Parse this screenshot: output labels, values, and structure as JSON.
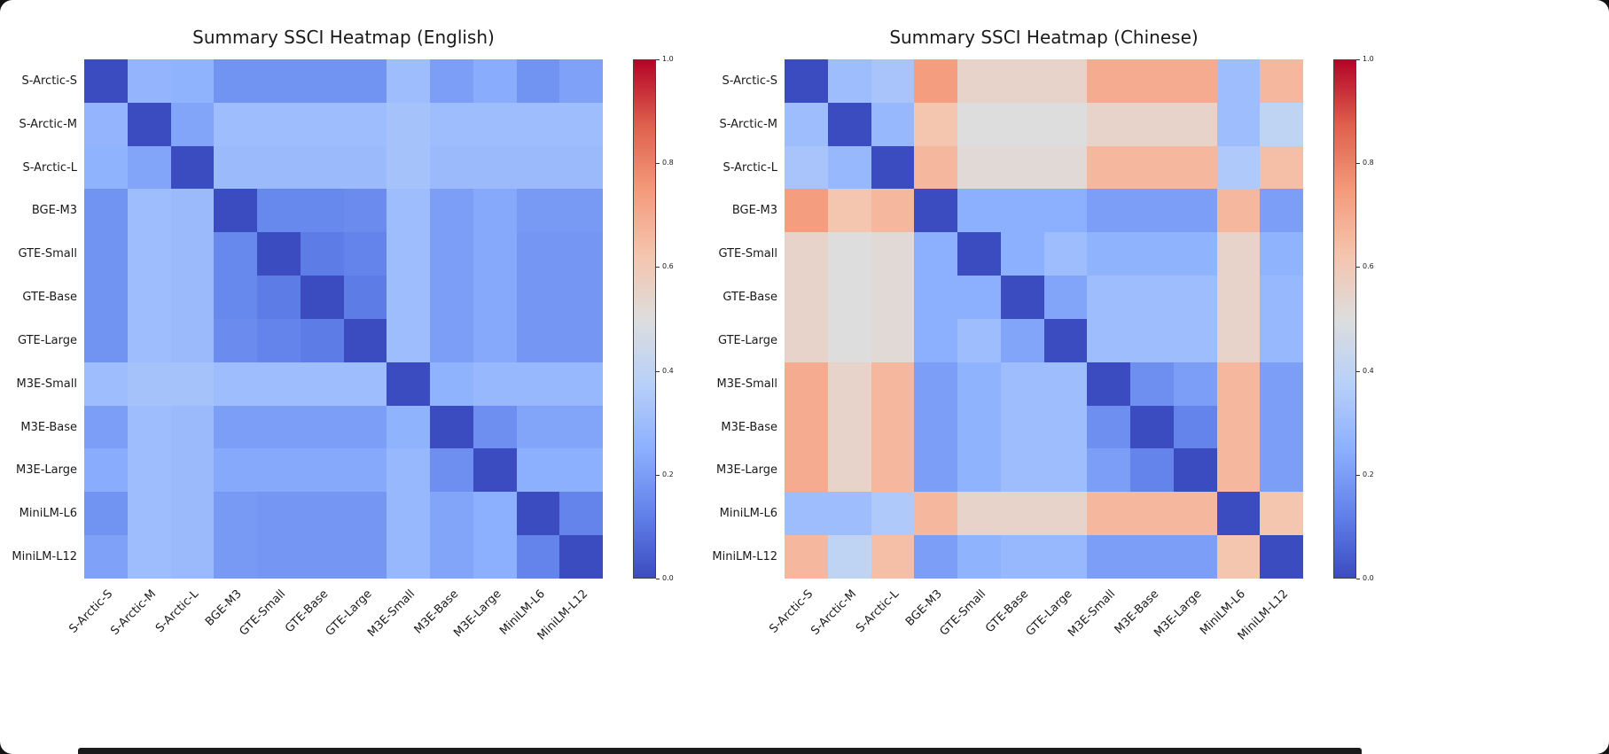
{
  "figure": {
    "background": "#ffffff",
    "page_background": "#141414"
  },
  "chart_data": [
    {
      "type": "heatmap",
      "title": "Summary SSCI Heatmap (English)",
      "colormap": "coolwarm",
      "vmin": 0.0,
      "vmax": 1.0,
      "legend_position": "right-colorbar",
      "labels": [
        "S-Arctic-S",
        "S-Arctic-M",
        "S-Arctic-L",
        "BGE-M3",
        "GTE-Small",
        "GTE-Base",
        "GTE-Large",
        "M3E-Small",
        "M3E-Base",
        "M3E-Large",
        "MiniLM-L6",
        "MiniLM-L12"
      ],
      "matrix": [
        [
          0.0,
          0.27,
          0.26,
          0.17,
          0.17,
          0.17,
          0.17,
          0.3,
          0.2,
          0.24,
          0.17,
          0.21
        ],
        [
          0.27,
          0.0,
          0.22,
          0.3,
          0.3,
          0.3,
          0.3,
          0.32,
          0.3,
          0.3,
          0.3,
          0.3
        ],
        [
          0.26,
          0.22,
          0.0,
          0.29,
          0.29,
          0.29,
          0.29,
          0.32,
          0.29,
          0.29,
          0.29,
          0.29
        ],
        [
          0.17,
          0.3,
          0.29,
          0.0,
          0.14,
          0.14,
          0.15,
          0.3,
          0.2,
          0.23,
          0.19,
          0.19
        ],
        [
          0.17,
          0.3,
          0.29,
          0.14,
          0.0,
          0.11,
          0.13,
          0.3,
          0.2,
          0.23,
          0.18,
          0.18
        ],
        [
          0.17,
          0.3,
          0.29,
          0.14,
          0.11,
          0.0,
          0.11,
          0.3,
          0.2,
          0.23,
          0.18,
          0.18
        ],
        [
          0.17,
          0.3,
          0.29,
          0.15,
          0.13,
          0.11,
          0.0,
          0.3,
          0.2,
          0.23,
          0.18,
          0.18
        ],
        [
          0.3,
          0.32,
          0.32,
          0.3,
          0.3,
          0.3,
          0.3,
          0.0,
          0.26,
          0.28,
          0.28,
          0.28
        ],
        [
          0.2,
          0.3,
          0.29,
          0.2,
          0.2,
          0.2,
          0.2,
          0.26,
          0.0,
          0.16,
          0.22,
          0.22
        ],
        [
          0.24,
          0.3,
          0.29,
          0.23,
          0.23,
          0.23,
          0.23,
          0.28,
          0.16,
          0.0,
          0.25,
          0.25
        ],
        [
          0.17,
          0.3,
          0.29,
          0.19,
          0.18,
          0.18,
          0.18,
          0.28,
          0.22,
          0.25,
          0.0,
          0.13
        ],
        [
          0.21,
          0.3,
          0.29,
          0.19,
          0.18,
          0.18,
          0.18,
          0.28,
          0.22,
          0.25,
          0.13,
          0.0
        ]
      ],
      "colorbar_ticks": [
        "0.0",
        "0.2",
        "0.4",
        "0.6",
        "0.8",
        "1.0"
      ]
    },
    {
      "type": "heatmap",
      "title": "Summary SSCI Heatmap (Chinese)",
      "colormap": "coolwarm",
      "vmin": 0.0,
      "vmax": 1.0,
      "legend_position": "right-colorbar",
      "labels": [
        "S-Arctic-S",
        "S-Arctic-M",
        "S-Arctic-L",
        "BGE-M3",
        "GTE-Small",
        "GTE-Base",
        "GTE-Large",
        "M3E-Small",
        "M3E-Base",
        "M3E-Large",
        "MiniLM-L6",
        "MiniLM-L12"
      ],
      "matrix": [
        [
          0.0,
          0.3,
          0.33,
          0.74,
          0.55,
          0.55,
          0.55,
          0.7,
          0.7,
          0.7,
          0.3,
          0.66
        ],
        [
          0.3,
          0.0,
          0.28,
          0.62,
          0.5,
          0.5,
          0.5,
          0.55,
          0.55,
          0.55,
          0.3,
          0.4
        ],
        [
          0.33,
          0.28,
          0.0,
          0.66,
          0.52,
          0.52,
          0.52,
          0.66,
          0.66,
          0.66,
          0.35,
          0.64
        ],
        [
          0.74,
          0.62,
          0.66,
          0.0,
          0.25,
          0.25,
          0.25,
          0.2,
          0.2,
          0.2,
          0.66,
          0.2
        ],
        [
          0.55,
          0.5,
          0.52,
          0.25,
          0.0,
          0.25,
          0.3,
          0.26,
          0.26,
          0.26,
          0.55,
          0.26
        ],
        [
          0.55,
          0.5,
          0.52,
          0.25,
          0.25,
          0.0,
          0.22,
          0.3,
          0.3,
          0.3,
          0.55,
          0.28
        ],
        [
          0.55,
          0.5,
          0.52,
          0.25,
          0.3,
          0.22,
          0.0,
          0.3,
          0.3,
          0.3,
          0.55,
          0.28
        ],
        [
          0.7,
          0.55,
          0.66,
          0.2,
          0.26,
          0.3,
          0.3,
          0.0,
          0.16,
          0.2,
          0.66,
          0.2
        ],
        [
          0.7,
          0.55,
          0.66,
          0.2,
          0.26,
          0.3,
          0.3,
          0.16,
          0.0,
          0.13,
          0.66,
          0.2
        ],
        [
          0.7,
          0.55,
          0.66,
          0.2,
          0.26,
          0.3,
          0.3,
          0.2,
          0.13,
          0.0,
          0.66,
          0.2
        ],
        [
          0.3,
          0.3,
          0.35,
          0.66,
          0.55,
          0.55,
          0.55,
          0.66,
          0.66,
          0.66,
          0.0,
          0.62
        ],
        [
          0.66,
          0.4,
          0.64,
          0.2,
          0.26,
          0.28,
          0.28,
          0.2,
          0.2,
          0.2,
          0.62,
          0.0
        ]
      ],
      "colorbar_ticks": [
        "0.0",
        "0.2",
        "0.4",
        "0.6",
        "0.8",
        "1.0"
      ]
    }
  ]
}
